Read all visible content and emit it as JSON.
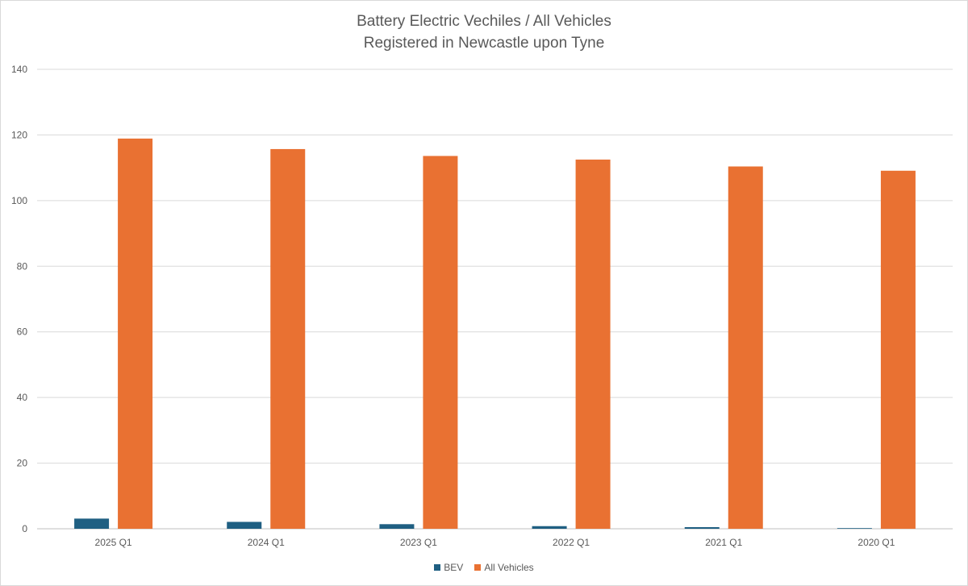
{
  "chart_data": {
    "type": "bar",
    "title_lines": [
      "Battery Electric Vechiles /  All Vehicles",
      "Registered in Newcastle upon Tyne"
    ],
    "categories": [
      "2025 Q1",
      "2024 Q1",
      "2023 Q1",
      "2022 Q1",
      "2021 Q1",
      "2020 Q1"
    ],
    "series": [
      {
        "name": "BEV",
        "color": "#1f5f82",
        "values": [
          3.1,
          2.1,
          1.4,
          0.8,
          0.5,
          0.2
        ]
      },
      {
        "name": "All Vehicles",
        "color": "#e97132",
        "values": [
          118.9,
          115.7,
          113.6,
          112.5,
          110.4,
          109.1
        ]
      }
    ],
    "ylim": [
      0,
      140
    ],
    "yticks": [
      "0",
      "20",
      "40",
      "60",
      "80",
      "100",
      "120",
      "140"
    ],
    "xlabel": "",
    "ylabel": "",
    "grid": true,
    "legend_position": "bottom"
  }
}
